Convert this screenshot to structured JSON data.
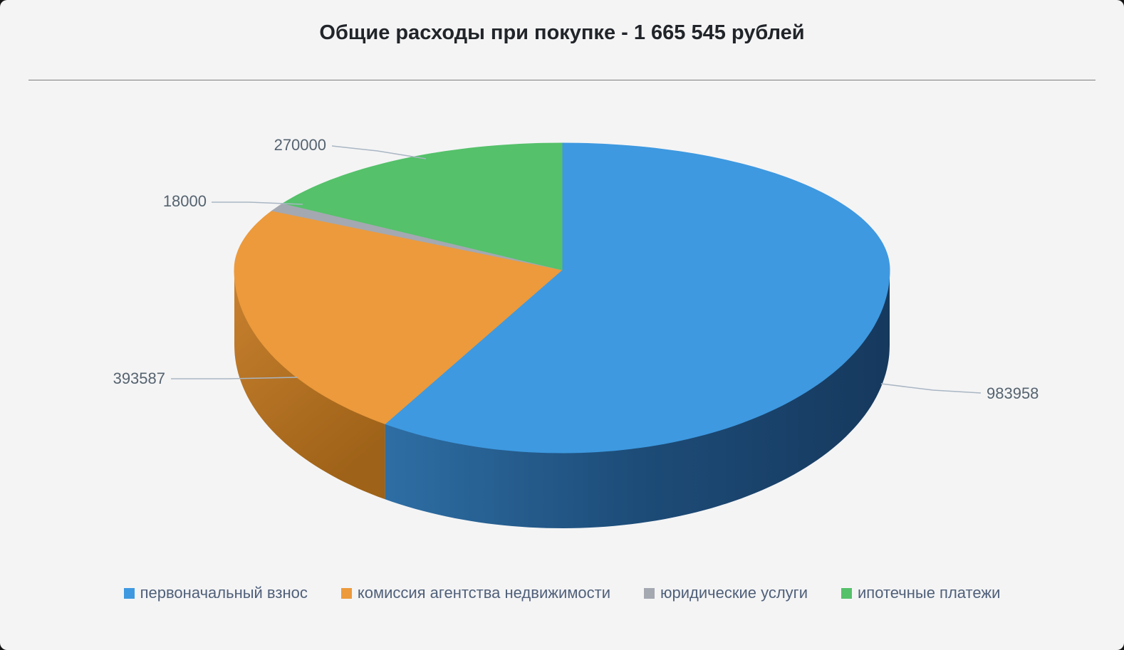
{
  "header": {
    "title": "Общие расходы при покупке - 1 665 545 рублей"
  },
  "chart_data": {
    "type": "pie",
    "is3d": true,
    "title": "Общие расходы при покупке - 1 665 545 рублей",
    "total": 1665545,
    "total_formatted": "1 665 545",
    "currency": "рублей",
    "legend_position": "bottom",
    "slices": [
      {
        "label": "первоначальный взнос",
        "value": 983958,
        "value_label": "983958",
        "color": "#3E99E0"
      },
      {
        "label": "комиссия агентства недвижимости",
        "value": 393587,
        "value_label": "393587",
        "color": "#EC9A3C"
      },
      {
        "label": "юридические услуги",
        "value": 18000,
        "value_label": "18000",
        "color": "#A4A8B1"
      },
      {
        "label": "ипотечные платежи",
        "value": 270000,
        "value_label": "270000",
        "color": "#55C16A"
      }
    ]
  },
  "colors": {
    "background": "#F4F4F5",
    "title_text": "#212529",
    "value_label_text": "#55636F",
    "legend_text": "#50607A",
    "leader_line": "#A9B6C3",
    "divider": "#7D7D7D",
    "blue_side_dark": "#16395E",
    "orange_side_dark": "#9E6218"
  }
}
